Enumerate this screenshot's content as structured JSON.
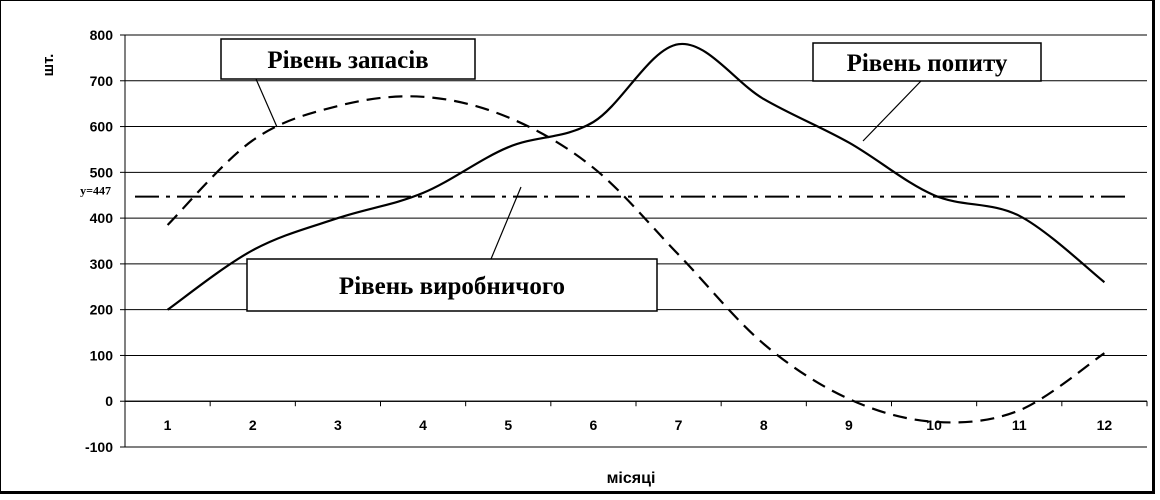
{
  "chart_data": {
    "type": "line",
    "x": [
      1,
      2,
      3,
      4,
      5,
      6,
      7,
      8,
      9,
      10,
      11,
      12
    ],
    "categories": [
      "1",
      "2",
      "3",
      "4",
      "5",
      "6",
      "7",
      "8",
      "9",
      "10",
      "11",
      "12"
    ],
    "xlabel": "місяці",
    "ylabel": "шт.",
    "ylim": [
      -100,
      800
    ],
    "yticks": [
      "-100",
      "0",
      "100",
      "200",
      "300",
      "400",
      "500",
      "600",
      "700",
      "800"
    ],
    "grid": "horizontal",
    "reference_line": {
      "y": 447,
      "label": "y=447",
      "style": "dash-dot"
    },
    "series": [
      {
        "name": "Рівень попиту",
        "style": "solid",
        "values": [
          200,
          330,
          400,
          455,
          555,
          610,
          780,
          660,
          565,
          450,
          405,
          260
        ]
      },
      {
        "name": "Рівень запасів",
        "style": "dashed",
        "values": [
          385,
          570,
          645,
          665,
          620,
          510,
          320,
          125,
          5,
          -45,
          -20,
          105
        ]
      }
    ],
    "annotations": [
      {
        "text": "Рівень запасів",
        "target": "Рівень запасів"
      },
      {
        "text": "Рівень попиту",
        "target": "Рівень попиту"
      },
      {
        "text": "Рівень виробничого",
        "target": "y=447"
      }
    ]
  }
}
